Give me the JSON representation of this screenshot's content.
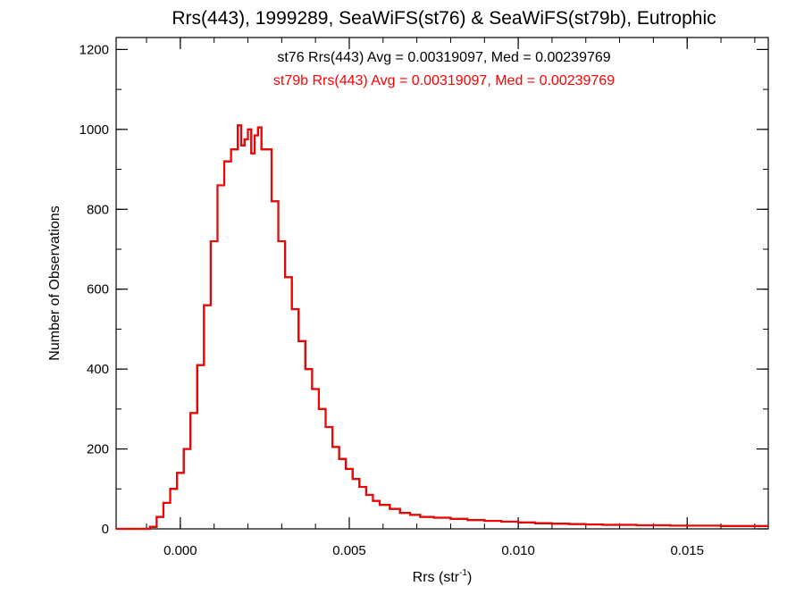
{
  "chart_data": {
    "type": "bar",
    "title": "Rrs(443), 1999289, SeaWiFS(st76) & SeaWiFS(st79b), Eutrophic",
    "xlabel_main": "Rrs (str",
    "xlabel_sup": "-1",
    "xlabel_close": ")",
    "ylabel": "Number of Observations",
    "xlim": [
      -0.0019,
      0.0174
    ],
    "ylim": [
      0,
      1230
    ],
    "xticks": [
      {
        "value": 0.0,
        "label": "0.000"
      },
      {
        "value": 0.005,
        "label": "0.005"
      },
      {
        "value": 0.01,
        "label": "0.010"
      },
      {
        "value": 0.015,
        "label": "0.015"
      }
    ],
    "yticks": [
      {
        "value": 0,
        "label": "0"
      },
      {
        "value": 200,
        "label": "200"
      },
      {
        "value": 400,
        "label": "400"
      },
      {
        "value": 600,
        "label": "600"
      },
      {
        "value": 800,
        "label": "800"
      },
      {
        "value": 1000,
        "label": "1000"
      },
      {
        "value": 1200,
        "label": "1200"
      }
    ],
    "annotations": [
      {
        "text": "st76 Rrs(443) Avg = 0.00319097, Med = 0.00239769",
        "color": "#000000"
      },
      {
        "text": "st79b Rrs(443) Avg = 0.00319097, Med = 0.00239769",
        "color": "#ff0000"
      }
    ],
    "series": [
      {
        "name": "st76",
        "color": "#000000",
        "x": [
          -0.0019,
          -0.0017,
          -0.0015,
          -0.0013,
          -0.0011,
          -0.0009,
          -0.0007,
          -0.0005,
          -0.0003,
          -0.0001,
          0.0001,
          0.0003,
          0.0005,
          0.0007,
          0.0009,
          0.0011,
          0.0013,
          0.0015,
          0.0017,
          0.0018,
          0.0019,
          0.002,
          0.0021,
          0.0022,
          0.0023,
          0.0024,
          0.0025,
          0.0027,
          0.0029,
          0.0031,
          0.0033,
          0.0035,
          0.0037,
          0.0039,
          0.0041,
          0.0043,
          0.0045,
          0.0047,
          0.0049,
          0.0051,
          0.0053,
          0.0055,
          0.0057,
          0.0059,
          0.0062,
          0.0065,
          0.0068,
          0.0071,
          0.0075,
          0.008,
          0.0085,
          0.009,
          0.0095,
          0.01,
          0.0105,
          0.011,
          0.0115,
          0.012,
          0.0125,
          0.013,
          0.0135,
          0.014,
          0.0145,
          0.015,
          0.0155,
          0.016,
          0.0165,
          0.017
        ],
        "values": [
          0,
          0,
          0,
          0,
          0,
          5,
          30,
          65,
          100,
          140,
          200,
          290,
          410,
          560,
          720,
          860,
          920,
          950,
          1010,
          960,
          975,
          1000,
          940,
          985,
          1005,
          950,
          950,
          820,
          720,
          630,
          550,
          470,
          400,
          350,
          300,
          255,
          205,
          175,
          150,
          125,
          105,
          85,
          70,
          60,
          50,
          40,
          35,
          30,
          28,
          25,
          22,
          20,
          18,
          16,
          14,
          13,
          12,
          11,
          10,
          10,
          9,
          9,
          8,
          8,
          8,
          7,
          7,
          7
        ]
      },
      {
        "name": "st79b",
        "color": "#ff0000",
        "x": [
          -0.0019,
          -0.0017,
          -0.0015,
          -0.0013,
          -0.0011,
          -0.0009,
          -0.0007,
          -0.0005,
          -0.0003,
          -0.0001,
          0.0001,
          0.0003,
          0.0005,
          0.0007,
          0.0009,
          0.0011,
          0.0013,
          0.0015,
          0.0017,
          0.0018,
          0.0019,
          0.002,
          0.0021,
          0.0022,
          0.0023,
          0.0024,
          0.0025,
          0.0027,
          0.0029,
          0.0031,
          0.0033,
          0.0035,
          0.0037,
          0.0039,
          0.0041,
          0.0043,
          0.0045,
          0.0047,
          0.0049,
          0.0051,
          0.0053,
          0.0055,
          0.0057,
          0.0059,
          0.0062,
          0.0065,
          0.0068,
          0.0071,
          0.0075,
          0.008,
          0.0085,
          0.009,
          0.0095,
          0.01,
          0.0105,
          0.011,
          0.0115,
          0.012,
          0.0125,
          0.013,
          0.0135,
          0.014,
          0.0145,
          0.015,
          0.0155,
          0.016,
          0.0165,
          0.017
        ],
        "values": [
          0,
          0,
          0,
          0,
          0,
          5,
          30,
          65,
          100,
          140,
          200,
          290,
          410,
          560,
          720,
          860,
          920,
          950,
          1010,
          960,
          975,
          1000,
          940,
          985,
          1005,
          950,
          950,
          820,
          720,
          630,
          550,
          470,
          400,
          350,
          300,
          255,
          205,
          175,
          150,
          125,
          105,
          85,
          70,
          60,
          50,
          40,
          35,
          30,
          28,
          25,
          22,
          20,
          18,
          16,
          14,
          13,
          12,
          11,
          10,
          10,
          9,
          9,
          8,
          8,
          8,
          7,
          7,
          7
        ]
      }
    ]
  }
}
